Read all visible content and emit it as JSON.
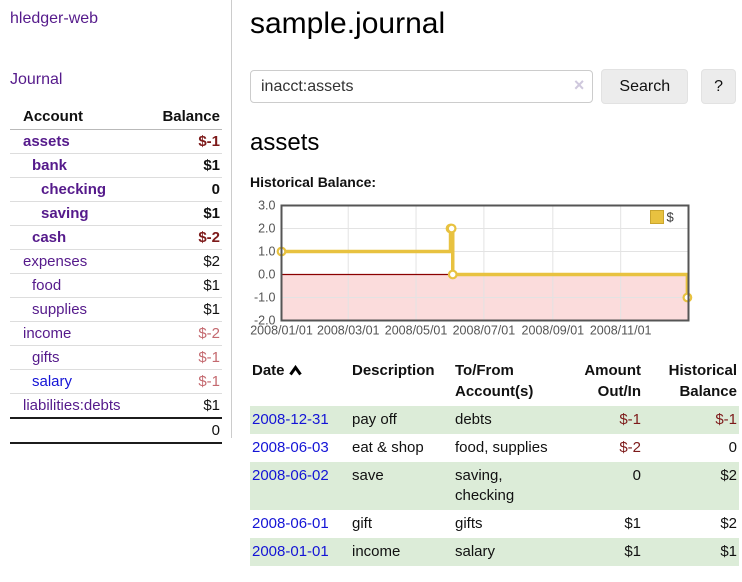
{
  "app": {
    "title": "hledger-web"
  },
  "colors": {
    "link_purple": "#551a8b",
    "link_blue": "#1414d6",
    "negative_strong": "#7d1a1a",
    "negative_soft": "#c4696f",
    "row_shade_green": "#dcecd8"
  },
  "sidebar": {
    "journal_label": "Journal",
    "accounts": {
      "headers": {
        "account": "Account",
        "balance": "Balance"
      },
      "rows": [
        {
          "name": "assets",
          "indent": 1,
          "bold": true,
          "blue": false,
          "balance": "$-1",
          "balance_class": "neg-strong"
        },
        {
          "name": "bank",
          "indent": 2,
          "bold": true,
          "blue": false,
          "balance": "$1",
          "balance_class": ""
        },
        {
          "name": "checking",
          "indent": 3,
          "bold": true,
          "blue": false,
          "balance": "0",
          "balance_class": ""
        },
        {
          "name": "saving",
          "indent": 3,
          "bold": true,
          "blue": false,
          "balance": "$1",
          "balance_class": ""
        },
        {
          "name": "cash",
          "indent": 2,
          "bold": true,
          "blue": false,
          "balance": "$-2",
          "balance_class": "neg-strong"
        },
        {
          "name": "expenses",
          "indent": 1,
          "bold": false,
          "blue": false,
          "balance": "$2",
          "balance_class": ""
        },
        {
          "name": "food",
          "indent": 2,
          "bold": false,
          "blue": false,
          "balance": "$1",
          "balance_class": ""
        },
        {
          "name": "supplies",
          "indent": 2,
          "bold": false,
          "blue": false,
          "balance": "$1",
          "balance_class": ""
        },
        {
          "name": "income",
          "indent": 1,
          "bold": false,
          "blue": false,
          "balance": "$-2",
          "balance_class": "neg-soft"
        },
        {
          "name": "gifts",
          "indent": 2,
          "bold": false,
          "blue": false,
          "balance": "$-1",
          "balance_class": "neg-soft"
        },
        {
          "name": "salary",
          "indent": 2,
          "bold": false,
          "blue": true,
          "balance": "$-1",
          "balance_class": "neg-soft"
        },
        {
          "name": "liabilities:debts",
          "indent": 1,
          "bold": false,
          "blue": false,
          "balance": "$1",
          "balance_class": ""
        }
      ],
      "total": "0"
    }
  },
  "header": {
    "title": "sample.journal"
  },
  "search": {
    "value": "inacct:assets",
    "clear_icon": "×",
    "button_label": "Search",
    "help_label": "?"
  },
  "account_page": {
    "title": "assets",
    "section_label": "Historical Balance:"
  },
  "chart_data": {
    "type": "line",
    "step": true,
    "title": "Historical Balance:",
    "series": [
      {
        "name": "$",
        "color": "#e8c240",
        "points": [
          [
            "2008-01-01",
            1
          ],
          [
            "2008-06-01",
            2
          ],
          [
            "2008-06-02",
            2
          ],
          [
            "2008-06-03",
            0
          ],
          [
            "2008-12-31",
            -1
          ]
        ]
      }
    ],
    "ylim": [
      -2,
      3
    ],
    "yticks": [
      {
        "v": 3,
        "label": "3.0"
      },
      {
        "v": 2,
        "label": "2.0"
      },
      {
        "v": 1,
        "label": "1.0"
      },
      {
        "v": 0,
        "label": "0.0"
      },
      {
        "v": -1,
        "label": "-1.0"
      },
      {
        "v": -2,
        "label": "-2.0"
      }
    ],
    "xrange": [
      "2008-01-01",
      "2009-01-01"
    ],
    "xticks": [
      {
        "date": "2008-01-01",
        "label": "2008/01/01"
      },
      {
        "date": "2008-03-01",
        "label": "2008/03/01"
      },
      {
        "date": "2008-05-01",
        "label": "2008/05/01"
      },
      {
        "date": "2008-07-01",
        "label": "2008/07/01"
      },
      {
        "date": "2008-09-01",
        "label": "2008/09/01"
      },
      {
        "date": "2008-11-01",
        "label": "2008/11/01"
      }
    ],
    "grid": true,
    "grid_color": "#e3e3e3",
    "border_color": "#555555",
    "negative_region_color": "#fbdcdc",
    "zero_line_color": "#8b0000",
    "marker_fill": "#ffffff",
    "legend": {
      "label": "$",
      "position": "top-right",
      "swatch_color": "#e8c240"
    },
    "tick_text_color": "#545454"
  },
  "register": {
    "headers": {
      "date": "Date",
      "description": "Description",
      "account": "To/From Account(s)",
      "amount": "Amount Out/In",
      "balance": "Historical Balance"
    },
    "sort_icon": "chevron-up",
    "rows": [
      {
        "date": "2008-12-31",
        "description": "pay off",
        "accounts": "debts",
        "amount": "$-1",
        "amount_negative": true,
        "balance": "$-1",
        "balance_negative": true
      },
      {
        "date": "2008-06-03",
        "description": "eat & shop",
        "accounts": "food, supplies",
        "amount": "$-2",
        "amount_negative": true,
        "balance": "0",
        "balance_negative": false
      },
      {
        "date": "2008-06-02",
        "description": "save",
        "accounts": "saving, checking",
        "amount": "0",
        "amount_negative": false,
        "balance": "$2",
        "balance_negative": false
      },
      {
        "date": "2008-06-01",
        "description": "gift",
        "accounts": "gifts",
        "amount": "$1",
        "amount_negative": false,
        "balance": "$2",
        "balance_negative": false
      },
      {
        "date": "2008-01-01",
        "description": "income",
        "accounts": "salary",
        "amount": "$1",
        "amount_negative": false,
        "balance": "$1",
        "balance_negative": false
      }
    ]
  }
}
